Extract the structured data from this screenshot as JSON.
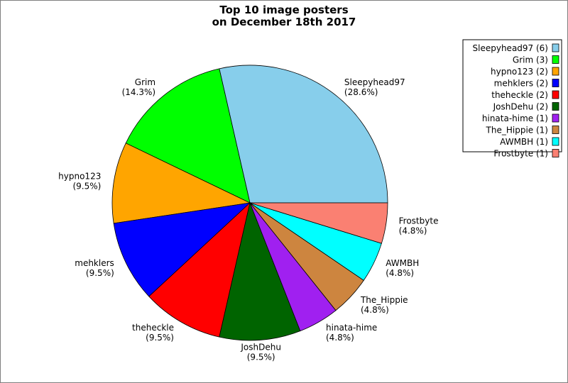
{
  "chart_data": {
    "type": "pie",
    "title_lines": [
      "Top 10 image posters",
      "on December 18th 2017"
    ],
    "slices": [
      {
        "name": "Sleepyhead97",
        "count": 6,
        "percent": 28.6,
        "color": "#87CEEB",
        "legend": "Sleepyhead97 (6)",
        "pct_label": "(28.6%)"
      },
      {
        "name": "Grim",
        "count": 3,
        "percent": 14.3,
        "color": "#00FF00",
        "legend": "Grim (3)",
        "pct_label": "(14.3%)"
      },
      {
        "name": "hypno123",
        "count": 2,
        "percent": 9.5,
        "color": "#FFA500",
        "legend": "hypno123 (2)",
        "pct_label": "(9.5%)"
      },
      {
        "name": "mehklers",
        "count": 2,
        "percent": 9.5,
        "color": "#0000FF",
        "legend": "mehklers (2)",
        "pct_label": "(9.5%)"
      },
      {
        "name": "theheckle",
        "count": 2,
        "percent": 9.5,
        "color": "#FF0000",
        "legend": "theheckle (2)",
        "pct_label": "(9.5%)"
      },
      {
        "name": "JoshDehu",
        "count": 2,
        "percent": 9.5,
        "color": "#006400",
        "legend": "JoshDehu (2)",
        "pct_label": "(9.5%)"
      },
      {
        "name": "hinata-hime",
        "count": 1,
        "percent": 4.8,
        "color": "#A020F0",
        "legend": "hinata-hime (1)",
        "pct_label": "(4.8%)"
      },
      {
        "name": "The_Hippie",
        "count": 1,
        "percent": 4.8,
        "color": "#CD853F",
        "legend": "The_Hippie (1)",
        "pct_label": "(4.8%)"
      },
      {
        "name": "AWMBH",
        "count": 1,
        "percent": 4.8,
        "color": "#00FFFF",
        "legend": "AWMBH (1)",
        "pct_label": "(4.8%)"
      },
      {
        "name": "Frostbyte",
        "count": 1,
        "percent": 4.8,
        "color": "#FA8072",
        "legend": "Frostbyte (1)",
        "pct_label": "(4.8%)"
      }
    ],
    "legend_position": "top-right"
  }
}
